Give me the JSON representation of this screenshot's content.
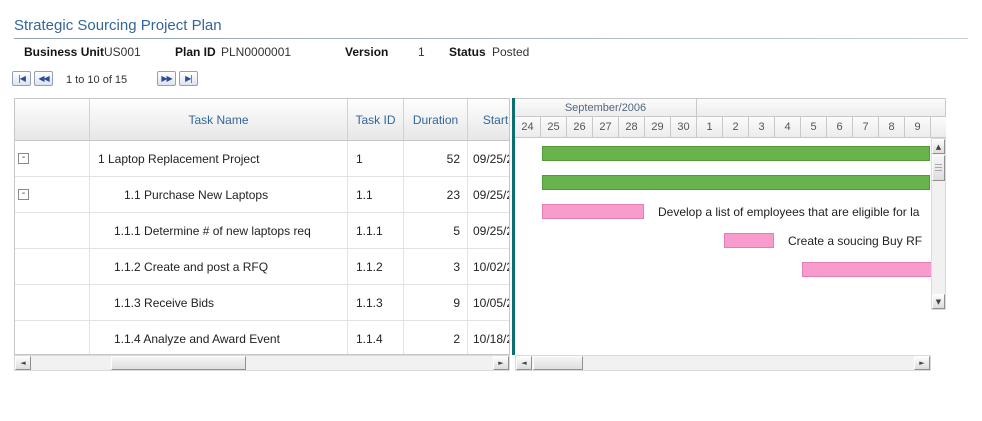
{
  "page": {
    "title": "Strategic Sourcing Project Plan"
  },
  "header_fields": [
    {
      "label": "Business Unit",
      "value": "US001"
    },
    {
      "label": "Plan ID",
      "value": "PLN0000001"
    },
    {
      "label": "Version",
      "value": "1"
    },
    {
      "label": "Status",
      "value": "Posted"
    }
  ],
  "pagination": {
    "range_text": "1 to 10 of 15",
    "icons": {
      "first": "|◀",
      "prev": "◀◀",
      "next": "▶▶",
      "last": "▶|"
    }
  },
  "icons": {
    "arrow_left": "◄",
    "arrow_right": "►",
    "arrow_up": "▲",
    "arrow_down": "▼"
  },
  "grid": {
    "columns": {
      "task_name": "Task Name",
      "task_id": "Task ID",
      "duration": "Duration",
      "start": "Start"
    },
    "rows": [
      {
        "collapse": "-",
        "task_name": "1 Laptop Replacement Project",
        "task_id": "1",
        "duration": "52",
        "start": "09/25/2"
      },
      {
        "collapse": "-",
        "task_name": "1.1 Purchase New Laptops",
        "task_id": "1.1",
        "duration": "23",
        "start": "09/25/2"
      },
      {
        "collapse": "",
        "task_name": "1.1.1 Determine # of new laptops req",
        "task_id": "1.1.1",
        "duration": "5",
        "start": "09/25/2"
      },
      {
        "collapse": "",
        "task_name": "1.1.2 Create and post a RFQ",
        "task_id": "1.1.2",
        "duration": "3",
        "start": "10/02/2"
      },
      {
        "collapse": "",
        "task_name": "1.1.3 Receive Bids",
        "task_id": "1.1.3",
        "duration": "9",
        "start": "10/05/2"
      },
      {
        "collapse": "",
        "task_name": "1.1.4 Analyze and Award Event",
        "task_id": "1.1.4",
        "duration": "2",
        "start": "10/18/2"
      }
    ]
  },
  "gantt": {
    "month_label": "September/2006",
    "days": [
      "24",
      "25",
      "26",
      "27",
      "28",
      "29",
      "30",
      "1",
      "2",
      "3",
      "4",
      "5",
      "6",
      "7",
      "8",
      "9"
    ],
    "colors": {
      "summary_bar": "#68b34c",
      "task_bar": "#f79ccd",
      "today_line": "#0e6f6f"
    },
    "bars": [
      {
        "row": 0,
        "start": 1,
        "span": 15,
        "kind": "summary",
        "color": "#68b34c",
        "border": "#549a3c",
        "label": ""
      },
      {
        "row": 1,
        "start": 1,
        "span": 15,
        "kind": "summary",
        "color": "#68b34c",
        "border": "#549a3c",
        "label": ""
      },
      {
        "row": 2,
        "start": 1,
        "span": 4,
        "kind": "task",
        "color": "#f79ccd",
        "border": "#df7fb6",
        "label": "Develop a list of employees that are eligible for la"
      },
      {
        "row": 3,
        "start": 8,
        "span": 2,
        "kind": "task",
        "color": "#f79ccd",
        "border": "#df7fb6",
        "label": "Create a soucing Buy RF"
      },
      {
        "row": 4,
        "start": 11,
        "span": 6,
        "kind": "task",
        "color": "#f79ccd",
        "border": "#df7fb6",
        "label": ""
      }
    ]
  }
}
